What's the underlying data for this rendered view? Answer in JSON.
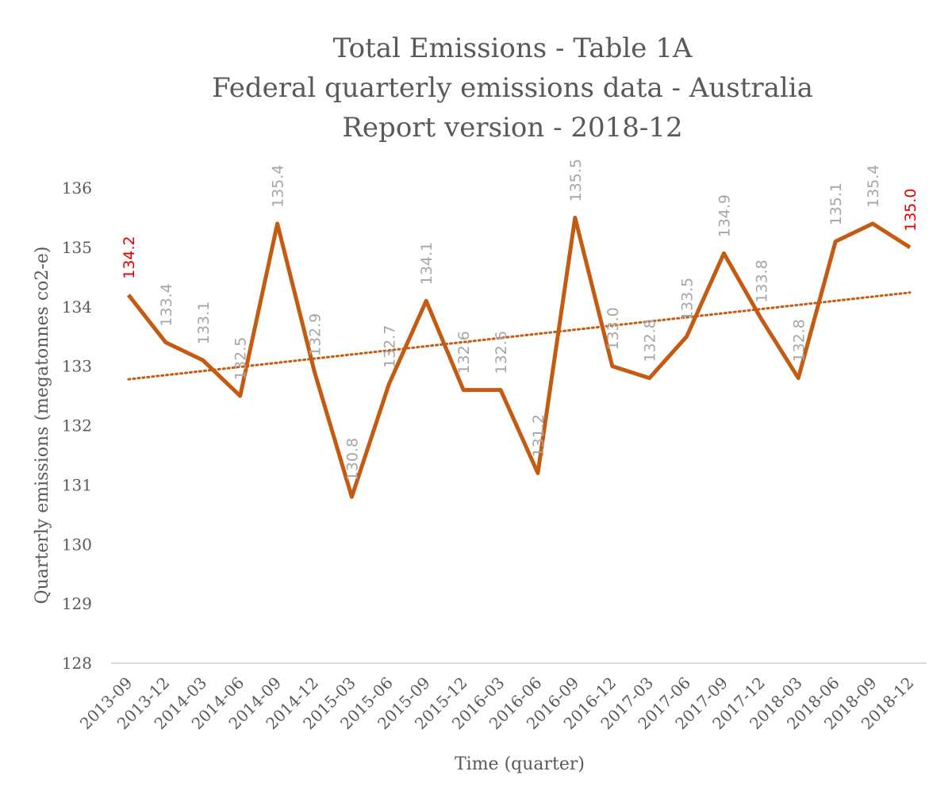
{
  "chart_data": {
    "type": "line",
    "title_lines": [
      "Total Emissions - Table 1A",
      "Federal quarterly emissions data - Australia",
      "Report version - 2018-12"
    ],
    "xlabel": "Time (quarter)",
    "ylabel": "Quarterly emissions (megatonnes co2-e)",
    "ylim": [
      128,
      136
    ],
    "yticks": [
      128,
      129,
      130,
      131,
      132,
      133,
      134,
      135,
      136
    ],
    "categories": [
      "2013-09",
      "2013-12",
      "2014-03",
      "2014-06",
      "2014-09",
      "2014-12",
      "2015-03",
      "2015-06",
      "2015-09",
      "2015-12",
      "2016-03",
      "2016-06",
      "2016-09",
      "2016-12",
      "2017-03",
      "2017-06",
      "2017-09",
      "2017-12",
      "2018-03",
      "2018-06",
      "2018-09",
      "2018-12"
    ],
    "series": [
      {
        "name": "Total Emissions",
        "values": [
          134.2,
          133.4,
          133.1,
          132.5,
          135.4,
          132.9,
          130.8,
          132.7,
          134.1,
          132.6,
          132.6,
          131.2,
          135.5,
          133.0,
          132.8,
          133.5,
          134.9,
          133.8,
          132.8,
          135.1,
          135.4,
          135.0
        ],
        "data_labels": [
          "134.2",
          "133.4",
          "133.1",
          "132.5",
          "135.4",
          "132.9",
          "130.8",
          "132.7",
          "134.1",
          "132.6",
          "132.6",
          "131.2",
          "135.5",
          "133.0",
          "132.8",
          "133.5",
          "134.9",
          "133.8",
          "132.8",
          "135.1",
          "135.4",
          "135.0"
        ],
        "highlight_indices": [
          0,
          21
        ]
      }
    ],
    "trendline": {
      "type": "linear",
      "start": 132.78,
      "end": 134.24
    },
    "grid": false,
    "colors": {
      "line": "#c55a11",
      "trend": "#c55a11",
      "label": "#a6a6a6",
      "highlight": "#e00000",
      "axis": "#d9d9d9",
      "text": "#595959"
    }
  }
}
